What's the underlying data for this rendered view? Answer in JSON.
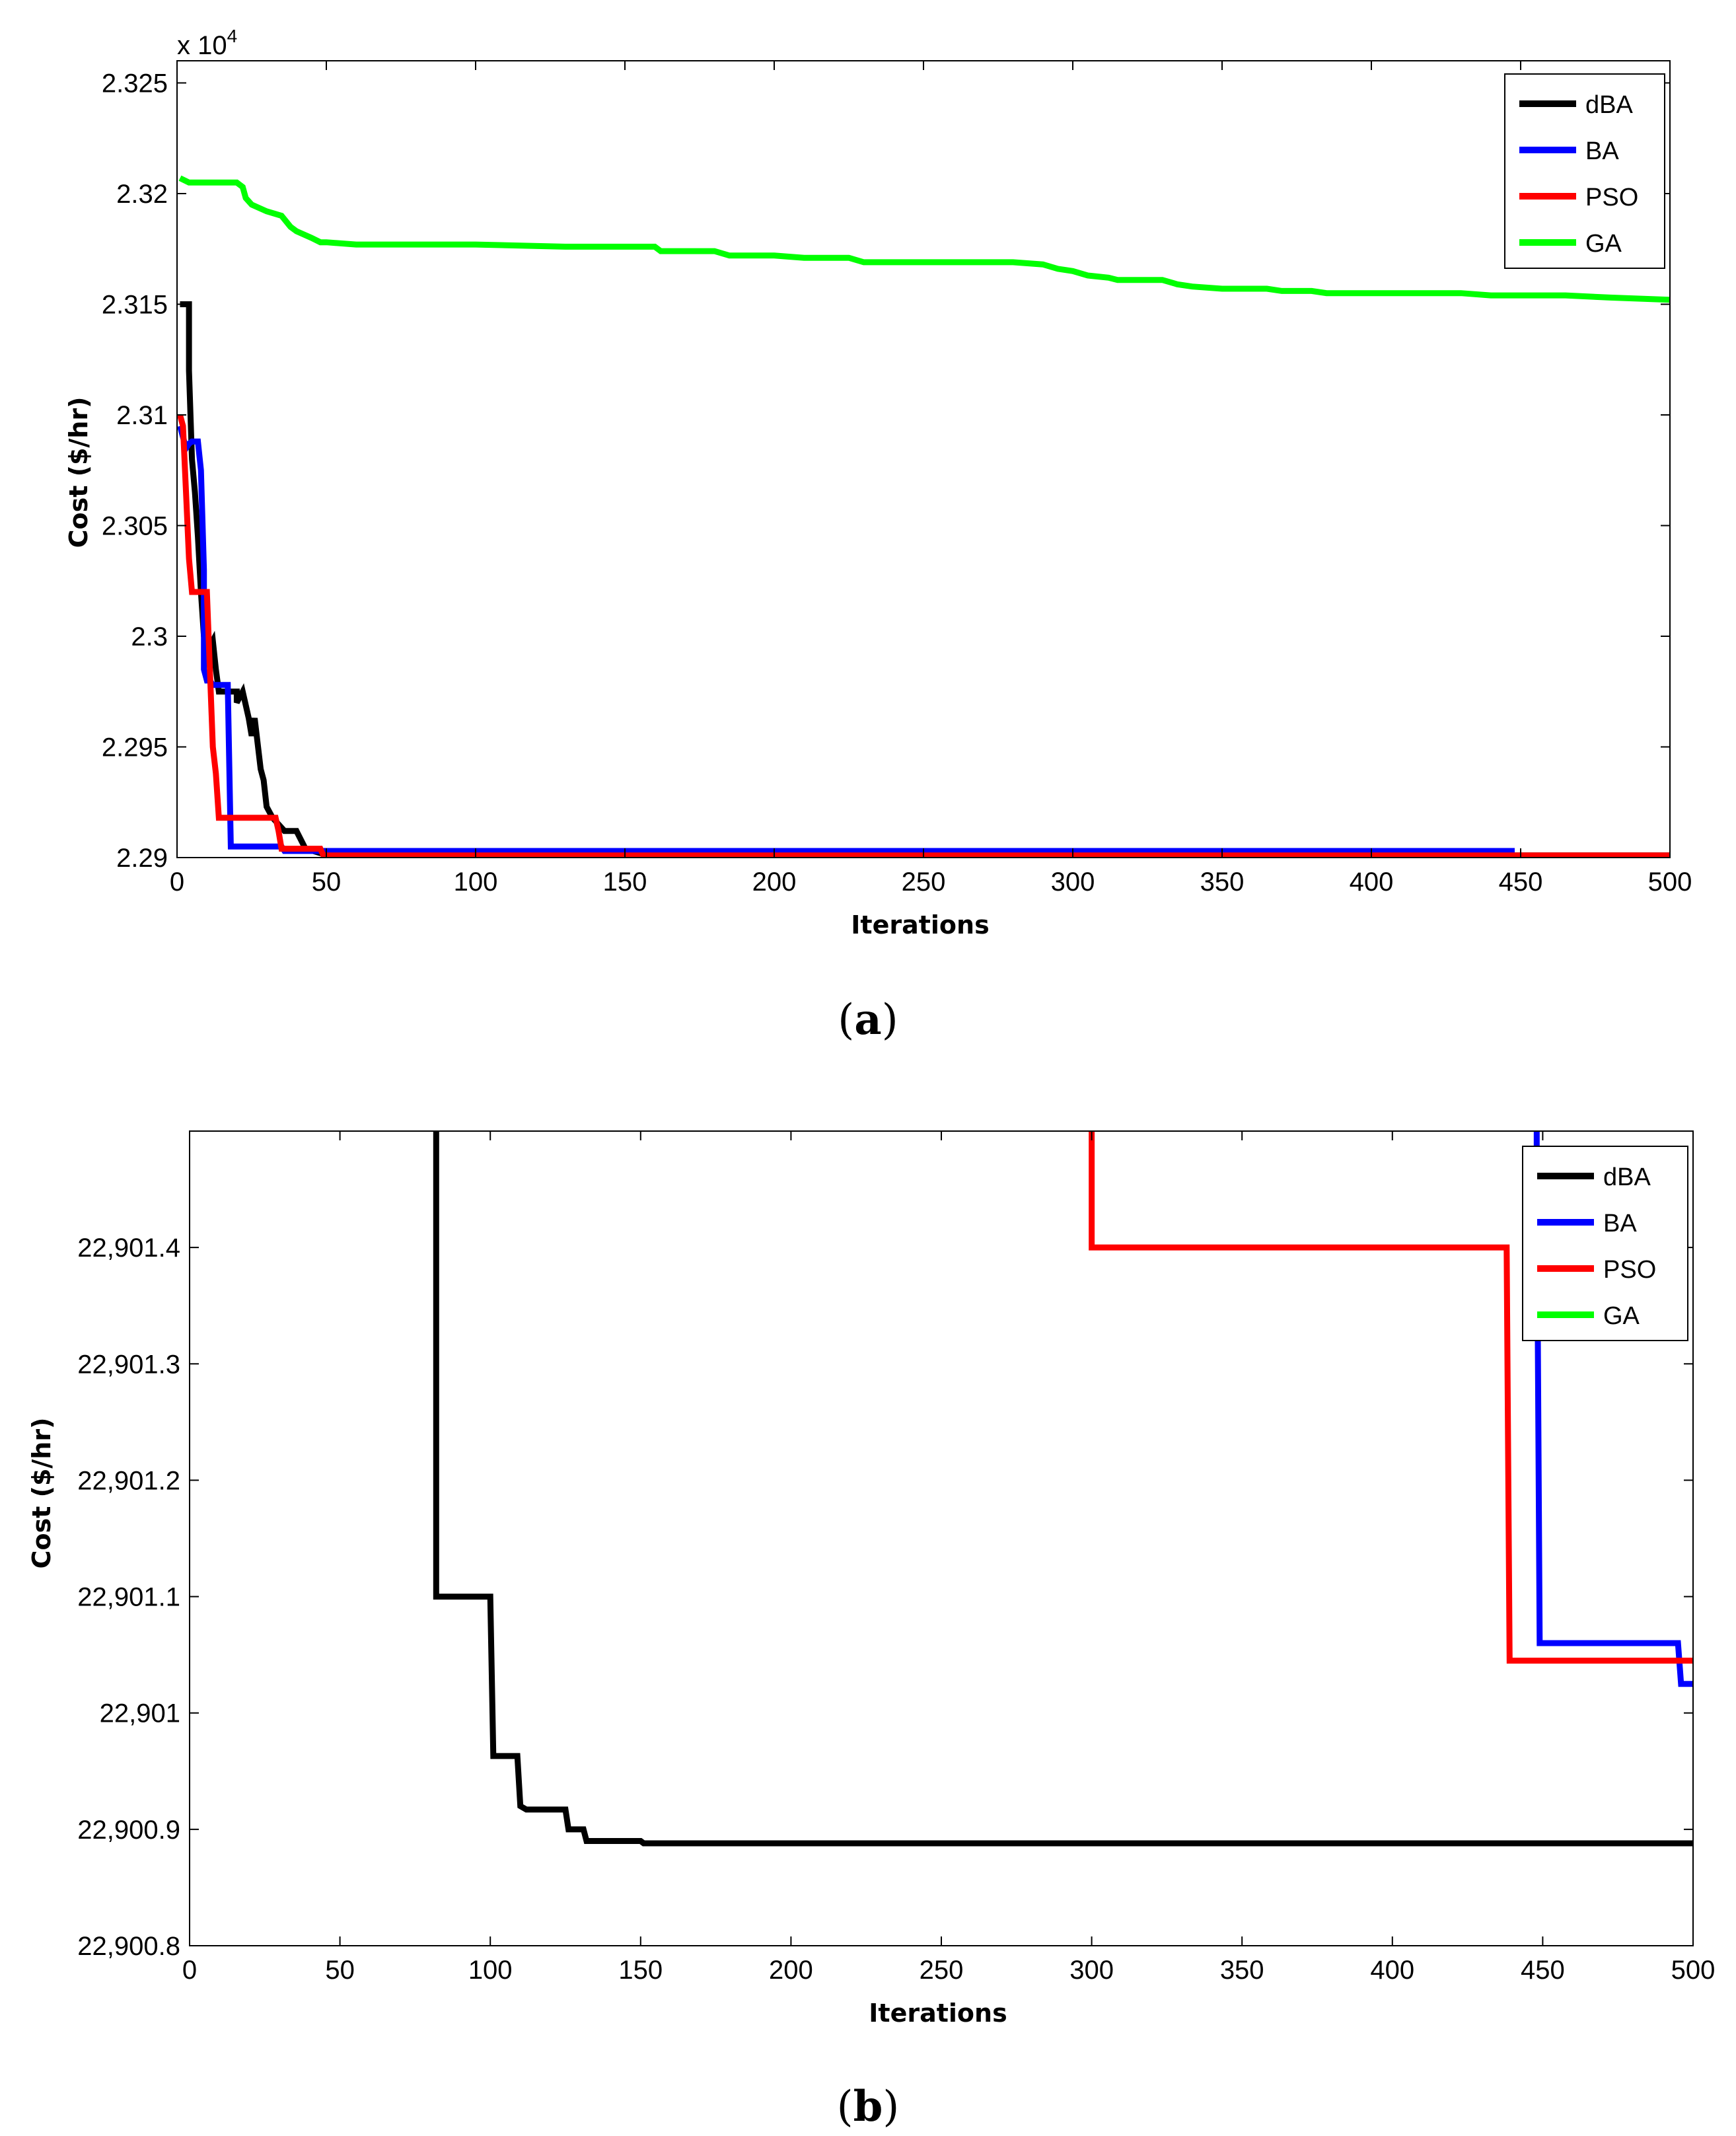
{
  "chart_data": [
    {
      "type": "line",
      "panel_label": "a",
      "xlabel": "Iterations",
      "ylabel": "Cost ($/hr)",
      "y_multiplier": "x 10",
      "y_multiplier_exp": "4",
      "xlim": [
        0,
        500
      ],
      "ylim": [
        2.29,
        2.326
      ],
      "xticks": [
        0,
        50,
        100,
        150,
        200,
        250,
        300,
        350,
        400,
        450,
        500
      ],
      "xtick_labels": [
        "0",
        "50",
        "100",
        "150",
        "200",
        "250",
        "300",
        "350",
        "400",
        "450",
        "500"
      ],
      "yticks": [
        2.29,
        2.295,
        2.3,
        2.305,
        2.31,
        2.315,
        2.32,
        2.325
      ],
      "ytick_labels": [
        "2.29",
        "2.295",
        "2.3",
        "2.305",
        "2.31",
        "2.315",
        "2.32",
        "2.325"
      ],
      "grid": false,
      "legend_position": "top-right",
      "series": [
        {
          "name": "dBA",
          "color": "#000000",
          "x": [
            1,
            4,
            4,
            5,
            6,
            7,
            8,
            9,
            10,
            12,
            13,
            14,
            20,
            20,
            22,
            24,
            25,
            26,
            28,
            29,
            30,
            32,
            36,
            40,
            43,
            48,
            60,
            100,
            200,
            300,
            400,
            500
          ],
          "y": [
            2.315,
            2.315,
            2.312,
            2.308,
            2.3065,
            2.3045,
            2.302,
            2.3,
            2.2993,
            2.2998,
            2.2985,
            2.2975,
            2.2975,
            2.297,
            2.2975,
            2.2963,
            2.2955,
            2.2963,
            2.294,
            2.2935,
            2.2923,
            2.2918,
            2.2912,
            2.2912,
            2.2904,
            2.2902,
            2.29015,
            2.2901,
            2.2901,
            2.2901,
            2.2901,
            2.2901
          ]
        },
        {
          "name": "BA",
          "color": "#0000ff",
          "x": [
            1,
            3,
            4,
            5,
            7,
            8,
            9,
            9,
            10,
            11,
            12,
            14,
            17,
            18,
            19,
            35,
            36,
            48,
            100,
            200,
            300,
            400,
            448
          ],
          "y": [
            2.3095,
            2.3085,
            2.3087,
            2.3088,
            2.3088,
            2.3075,
            2.303,
            2.2985,
            2.298,
            2.298,
            2.2978,
            2.2978,
            2.2978,
            2.2905,
            2.2905,
            2.2905,
            2.2903,
            2.2903,
            2.2903,
            2.2903,
            2.2903,
            2.2903,
            2.2903
          ]
        },
        {
          "name": "PSO",
          "color": "#ff0000",
          "x": [
            1,
            2,
            3,
            4,
            5,
            6,
            8,
            10,
            11,
            12,
            13,
            14,
            15,
            33,
            34,
            35,
            40,
            44,
            48,
            49,
            100,
            200,
            300,
            400,
            500
          ],
          "y": [
            2.31,
            2.3095,
            2.3065,
            2.3035,
            2.302,
            2.302,
            2.302,
            2.302,
            2.2985,
            2.295,
            2.2938,
            2.2918,
            2.2918,
            2.2918,
            2.2912,
            2.2904,
            2.2904,
            2.2904,
            2.2904,
            2.2901,
            2.2901,
            2.2901,
            2.2901,
            2.2901,
            2.2901
          ]
        },
        {
          "name": "GA",
          "color": "#00ff00",
          "x": [
            1,
            4,
            20,
            22,
            23,
            25,
            30,
            35,
            38,
            40,
            45,
            48,
            50,
            60,
            100,
            130,
            160,
            162,
            180,
            185,
            200,
            210,
            225,
            230,
            280,
            290,
            295,
            300,
            305,
            312,
            315,
            330,
            335,
            340,
            350,
            365,
            370,
            380,
            385,
            400,
            430,
            440,
            465,
            480,
            500
          ],
          "y": [
            2.3207,
            2.3205,
            2.3205,
            2.3203,
            2.3198,
            2.3195,
            2.3192,
            2.319,
            2.3185,
            2.3183,
            2.318,
            2.3178,
            2.3178,
            2.3177,
            2.3177,
            2.3176,
            2.3176,
            2.3174,
            2.3174,
            2.3172,
            2.3172,
            2.3171,
            2.3171,
            2.3169,
            2.3169,
            2.3168,
            2.3166,
            2.3165,
            2.3163,
            2.3162,
            2.3161,
            2.3161,
            2.3159,
            2.3158,
            2.3157,
            2.3157,
            2.3156,
            2.3156,
            2.3155,
            2.3155,
            2.3155,
            2.3154,
            2.3154,
            2.3153,
            2.3152
          ]
        }
      ]
    },
    {
      "type": "line",
      "panel_label": "b",
      "xlabel": "Iterations",
      "ylabel": "Cost ($/hr)",
      "xlim": [
        0,
        500
      ],
      "ylim": [
        22900.8,
        22901.5
      ],
      "xticks": [
        0,
        50,
        100,
        150,
        200,
        250,
        300,
        350,
        400,
        450,
        500
      ],
      "xtick_labels": [
        "0",
        "50",
        "100",
        "150",
        "200",
        "250",
        "300",
        "350",
        "400",
        "450",
        "500"
      ],
      "yticks": [
        22900.8,
        22900.9,
        22901,
        22901.1,
        22901.2,
        22901.3,
        22901.4
      ],
      "ytick_labels": [
        "22,900.8",
        "22,900.9",
        "22,901",
        "22,901.1",
        "22,901.2",
        "22,901.3",
        "22,901.4"
      ],
      "grid": false,
      "legend_position": "top-right",
      "series": [
        {
          "name": "dBA",
          "color": "#000000",
          "x": [
            82,
            82,
            100,
            101,
            109,
            110,
            112,
            125,
            126,
            131,
            132,
            150,
            151,
            500
          ],
          "y": [
            22901.6,
            22901.1,
            22901.1,
            22900.963,
            22900.963,
            22900.92,
            22900.917,
            22900.917,
            22900.9,
            22900.9,
            22900.89,
            22900.89,
            22900.888,
            22900.888
          ]
        },
        {
          "name": "BA",
          "color": "#0000ff",
          "x": [
            448,
            448,
            449,
            495,
            496,
            500
          ],
          "y": [
            22901.6,
            22901.48,
            22901.06,
            22901.06,
            22901.025,
            22901.025
          ]
        },
        {
          "name": "PSO",
          "color": "#ff0000",
          "x": [
            300,
            300,
            438,
            439,
            500
          ],
          "y": [
            22901.6,
            22901.4,
            22901.4,
            22901.045,
            22901.045
          ]
        },
        {
          "name": "GA",
          "color": "#00ff00",
          "x": [],
          "y": []
        }
      ]
    }
  ]
}
